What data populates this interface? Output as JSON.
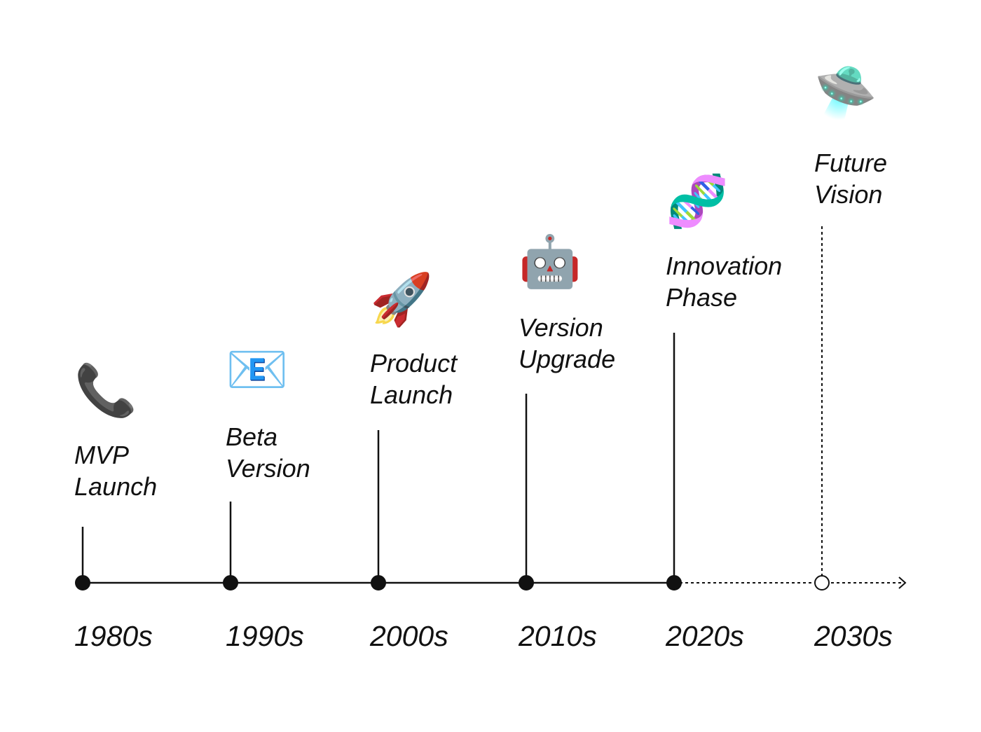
{
  "milestones": [
    {
      "icon": "📞",
      "lines": [
        "MVP",
        "Launch"
      ],
      "decade": "1980s"
    },
    {
      "icon": "📧",
      "lines": [
        "Beta",
        "Version"
      ],
      "decade": "1990s"
    },
    {
      "icon": "🚀",
      "lines": [
        "Product",
        "Launch"
      ],
      "decade": "2000s"
    },
    {
      "icon": "🤖",
      "lines": [
        "Version",
        "Upgrade"
      ],
      "decade": "2010s"
    },
    {
      "icon": "🧬",
      "lines": [
        "Innovation",
        "Phase"
      ],
      "decade": "2020s"
    },
    {
      "icon": "🛸",
      "lines": [
        "Future",
        "Vision"
      ],
      "decade": "2030s"
    }
  ]
}
